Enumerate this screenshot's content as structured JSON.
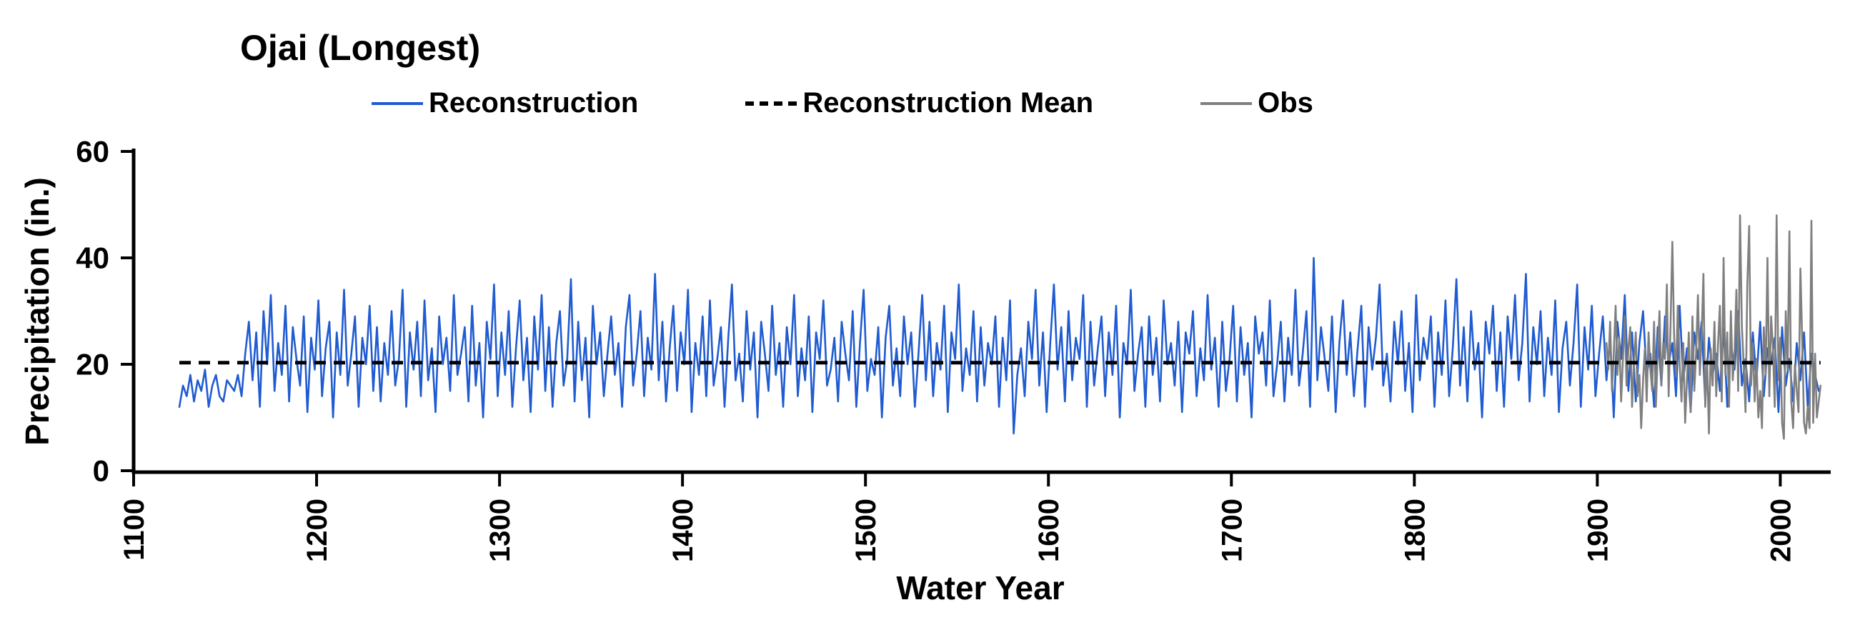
{
  "title": "Ojai (Longest)",
  "legend": [
    {
      "label": "Reconstruction",
      "color": "#1f5bd1",
      "style": "solid"
    },
    {
      "label": "Reconstruction Mean",
      "color": "#000000",
      "style": "dashed"
    },
    {
      "label": "Obs",
      "color": "#7f7f7f",
      "style": "solid"
    }
  ],
  "chart_data": {
    "type": "line",
    "title": "Ojai (Longest)",
    "xlabel": "Water Year",
    "ylabel": "Precipitation (in.)",
    "xlim": [
      1100,
      2026
    ],
    "ylim": [
      0,
      60
    ],
    "x_ticks": [
      1100,
      1200,
      1300,
      1400,
      1500,
      1600,
      1700,
      1800,
      1900,
      2000
    ],
    "y_ticks": [
      0,
      20,
      40,
      60
    ],
    "grid": false,
    "legend_position": "top",
    "series": [
      {
        "name": "Reconstruction",
        "color": "#1f5bd1",
        "x_start": 1125,
        "x_step": 2,
        "values": [
          12,
          16,
          14,
          18,
          13,
          17,
          15,
          19,
          12,
          16,
          18,
          14,
          13,
          17,
          16,
          15,
          18,
          14,
          22,
          28,
          17,
          26,
          12,
          30,
          20,
          33,
          15,
          24,
          18,
          31,
          13,
          27,
          21,
          16,
          29,
          11,
          25,
          19,
          32,
          14,
          23,
          28,
          10,
          26,
          18,
          34,
          16,
          22,
          29,
          12,
          25,
          20,
          31,
          15,
          27,
          13,
          24,
          18,
          30,
          16,
          21,
          34,
          12,
          26,
          19,
          28,
          14,
          32,
          17,
          23,
          11,
          29,
          20,
          25,
          15,
          33,
          18,
          22,
          27,
          13,
          31,
          16,
          24,
          10,
          28,
          21,
          35,
          14,
          26,
          18,
          30,
          12,
          23,
          32,
          17,
          25,
          11,
          29,
          19,
          33,
          15,
          27,
          12,
          24,
          30,
          16,
          21,
          36,
          13,
          28,
          17,
          25,
          10,
          31,
          20,
          26,
          14,
          22,
          29,
          18,
          24,
          12,
          27,
          33,
          16,
          22,
          30,
          14,
          25,
          19,
          37,
          17,
          28,
          13,
          23,
          31,
          15,
          26,
          20,
          34,
          11,
          24,
          18,
          29,
          14,
          32,
          16,
          21,
          27,
          12,
          25,
          35,
          17,
          22,
          13,
          30,
          19,
          26,
          10,
          28,
          22,
          15,
          31,
          18,
          24,
          12,
          27,
          20,
          33,
          14,
          23,
          17,
          29,
          11,
          26,
          21,
          32,
          16,
          19,
          25,
          13,
          28,
          22,
          17,
          30,
          12,
          24,
          34,
          15,
          21,
          18,
          27,
          10,
          25,
          31,
          16,
          23,
          14,
          29,
          20,
          26,
          12,
          22,
          33,
          17,
          28,
          14,
          24,
          19,
          31,
          11,
          26,
          21,
          35,
          15,
          23,
          18,
          30,
          13,
          27,
          16,
          24,
          20,
          29,
          12,
          25,
          17,
          32,
          7,
          18,
          23,
          14,
          28,
          21,
          34,
          16,
          26,
          11,
          24,
          35,
          19,
          27,
          13,
          30,
          17,
          25,
          21,
          33,
          12,
          28,
          16,
          23,
          29,
          14,
          26,
          18,
          31,
          10,
          24,
          20,
          34,
          15,
          22,
          27,
          12,
          29,
          18,
          25,
          13,
          32,
          20,
          24,
          16,
          28,
          11,
          26,
          22,
          30,
          14,
          23,
          17,
          33,
          19,
          25,
          12,
          28,
          15,
          21,
          31,
          13,
          27,
          18,
          24,
          10,
          29,
          22,
          26,
          16,
          32,
          14,
          20,
          28,
          13,
          25,
          18,
          34,
          16,
          22,
          30,
          12,
          40,
          17,
          27,
          21,
          15,
          29,
          11,
          24,
          32,
          18,
          26,
          14,
          23,
          31,
          12,
          27,
          19,
          25,
          35,
          16,
          22,
          13,
          28,
          20,
          30,
          15,
          24,
          11,
          33,
          17,
          25,
          21,
          29,
          12,
          26,
          18,
          32,
          14,
          23,
          36,
          16,
          27,
          13,
          30,
          19,
          24,
          10,
          28,
          22,
          31,
          15,
          26,
          12,
          29,
          21,
          33,
          17,
          24,
          37,
          13,
          27,
          20,
          30,
          14,
          25,
          18,
          32,
          11,
          23,
          28,
          16,
          24,
          35,
          12,
          27,
          19,
          31,
          14,
          22,
          29,
          17,
          25,
          10,
          28,
          21,
          33,
          15,
          26,
          13,
          24,
          30,
          18,
          22,
          12,
          27,
          16,
          29,
          20,
          24,
          14,
          31,
          17,
          23,
          11,
          26,
          21,
          28,
          13,
          25,
          18,
          22,
          15,
          27,
          12,
          24,
          19,
          30,
          16,
          21,
          13,
          26,
          17,
          28,
          14,
          23,
          20,
          25,
          11,
          27,
          16,
          21,
          13,
          24,
          17,
          26,
          12,
          22,
          18,
          15
        ]
      },
      {
        "name": "Reconstruction Mean",
        "color": "#000000",
        "dashed": true,
        "mean": 20.3,
        "x_start": 1125,
        "x_end": 2022
      },
      {
        "name": "Obs",
        "color": "#7f7f7f",
        "x_start": 1905,
        "x_step": 1,
        "values": [
          24,
          19,
          28,
          15,
          22,
          31,
          18,
          25,
          13,
          21,
          29,
          16,
          23,
          27,
          12,
          20,
          26,
          14,
          18,
          8,
          17,
          23,
          13,
          26,
          19,
          15,
          28,
          12,
          22,
          30,
          16,
          24,
          21,
          35,
          14,
          27,
          43,
          25,
          18,
          31,
          20,
          13,
          24,
          9,
          17,
          26,
          11,
          29,
          15,
          22,
          33,
          18,
          25,
          37,
          12,
          21,
          7,
          23,
          16,
          28,
          14,
          24,
          31,
          13,
          40,
          18,
          26,
          12,
          30,
          17,
          22,
          34,
          15,
          48,
          27,
          20,
          11,
          35,
          46,
          16,
          24,
          13,
          21,
          10,
          15,
          8,
          27,
          18,
          40,
          14,
          29,
          23,
          12,
          48,
          17,
          25,
          9,
          6,
          30,
          19,
          45,
          13,
          8,
          20,
          15,
          11,
          38,
          24,
          9,
          7,
          12,
          8,
          47,
          9,
          22,
          10,
          13,
          16
        ]
      }
    ]
  }
}
